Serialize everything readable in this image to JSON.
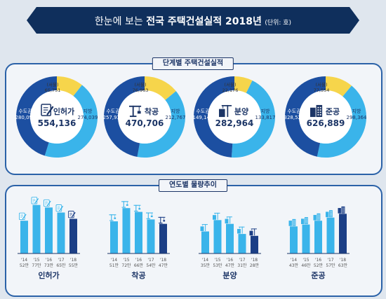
{
  "header": {
    "title_prefix": "한눈에 보는",
    "title_main": "전국 주택건설실적 2018년",
    "title_unit": "(단위: 호)"
  },
  "panels": {
    "stage_title": "단계별 주택건설실적",
    "trend_title": "연도별 물량추이"
  },
  "colors": {
    "metro": "#1c4fa1",
    "local": "#3ab4ea",
    "seoul": "#f6d54b",
    "bar_light": "#3ab4ea",
    "bar_dark": "#1c3f86",
    "banner": "#0f2f5c"
  },
  "chart_data": [
    {
      "type": "pie",
      "title": "단계별 주택건설실적",
      "donuts": [
        {
          "label": "인허가",
          "total": "554,136",
          "icon": "document-pen-icon",
          "slices": [
            {
              "name": "(서울)",
              "value": 65751,
              "display": "65,751"
            },
            {
              "name": "지방",
              "value": 274039,
              "display": "274,039"
            },
            {
              "name": "수도권",
              "value": 280097,
              "display": "280,097"
            }
          ]
        },
        {
          "label": "착공",
          "total": "470,706",
          "icon": "crane-icon",
          "slices": [
            {
              "name": "(서울)",
              "value": 76963,
              "display": "76,963"
            },
            {
              "name": "지방",
              "value": 212767,
              "display": "212,767"
            },
            {
              "name": "수도권",
              "value": 257939,
              "display": "257,939"
            }
          ]
        },
        {
          "label": "분양",
          "total": "282,964",
          "icon": "building-crane-icon",
          "slices": [
            {
              "name": "(서울)",
              "value": 22176,
              "display": "22,176"
            },
            {
              "name": "지방",
              "value": 133817,
              "display": "133,817"
            },
            {
              "name": "수도권",
              "value": 149147,
              "display": "149,147"
            }
          ]
        },
        {
          "label": "준공",
          "total": "626,889",
          "icon": "apartment-icon",
          "slices": [
            {
              "name": "(서울)",
              "value": 77554,
              "display": "77,554"
            },
            {
              "name": "지방",
              "value": 298364,
              "display": "298,364"
            },
            {
              "name": "수도권",
              "value": 328525,
              "display": "328,525"
            }
          ]
        }
      ]
    },
    {
      "type": "bar",
      "title": "연도별 물량추이",
      "ylabel": "",
      "xlabel": "",
      "ylim": [
        0,
        80
      ],
      "groups": [
        {
          "label": "인허가",
          "icon": "document-pen-icon",
          "categories": [
            "'14",
            "'15",
            "'16",
            "'17",
            "'18"
          ],
          "values": [
            52,
            77,
            73,
            65,
            55
          ],
          "value_labels": [
            "52만",
            "77만",
            "73만",
            "65만",
            "55만"
          ]
        },
        {
          "label": "착공",
          "icon": "crane-icon",
          "categories": [
            "'14",
            "'15",
            "'16",
            "'17",
            "'18"
          ],
          "values": [
            51,
            72,
            66,
            54,
            47
          ],
          "value_labels": [
            "51만",
            "72만",
            "66만",
            "54만",
            "47만"
          ]
        },
        {
          "label": "분양",
          "icon": "building-crane-icon",
          "categories": [
            "'14",
            "'15",
            "'16",
            "'17",
            "'18"
          ],
          "values": [
            35,
            53,
            47,
            31,
            28
          ],
          "value_labels": [
            "35만",
            "53만",
            "47만",
            "31만",
            "28만"
          ]
        },
        {
          "label": "준공",
          "icon": "apartment-icon",
          "categories": [
            "'14",
            "'15",
            "'16",
            "'17",
            "'18"
          ],
          "values": [
            43,
            46,
            52,
            57,
            63
          ],
          "value_labels": [
            "43만",
            "46만",
            "52만",
            "57만",
            "63만"
          ]
        }
      ]
    }
  ]
}
